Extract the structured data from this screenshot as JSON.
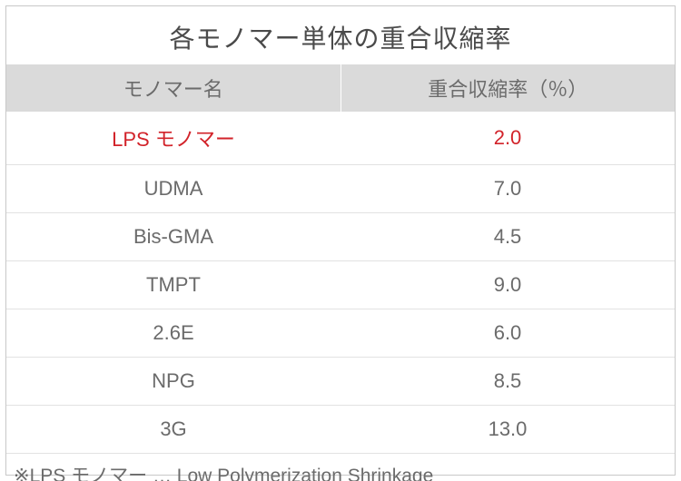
{
  "title": "各モノマー単体の重合収縮率",
  "table": {
    "type": "table",
    "columns": [
      "モノマー名",
      "重合収縮率（％）"
    ],
    "rows": [
      {
        "name": "LPS モノマー",
        "value": "2.0",
        "highlighted": true
      },
      {
        "name": "UDMA",
        "value": "7.0",
        "highlighted": false
      },
      {
        "name": "Bis-GMA",
        "value": "4.5",
        "highlighted": false
      },
      {
        "name": "TMPT",
        "value": "9.0",
        "highlighted": false
      },
      {
        "name": "2.6E",
        "value": "6.0",
        "highlighted": false
      },
      {
        "name": "NPG",
        "value": "8.5",
        "highlighted": false
      },
      {
        "name": "3G",
        "value": "13.0",
        "highlighted": false
      }
    ],
    "column_widths": [
      "50%",
      "50%"
    ],
    "header_bg": "#dadada",
    "header_fg": "#6b6b6b",
    "body_fg": "#6b6b6b",
    "highlight_fg": "#d2232a",
    "grid_color": "#e2e2e2",
    "title_fontsize": 28,
    "header_fontsize": 22,
    "cell_fontsize": 22
  },
  "footnote": "※LPS モノマー … Low Polymerization Shrinkage"
}
